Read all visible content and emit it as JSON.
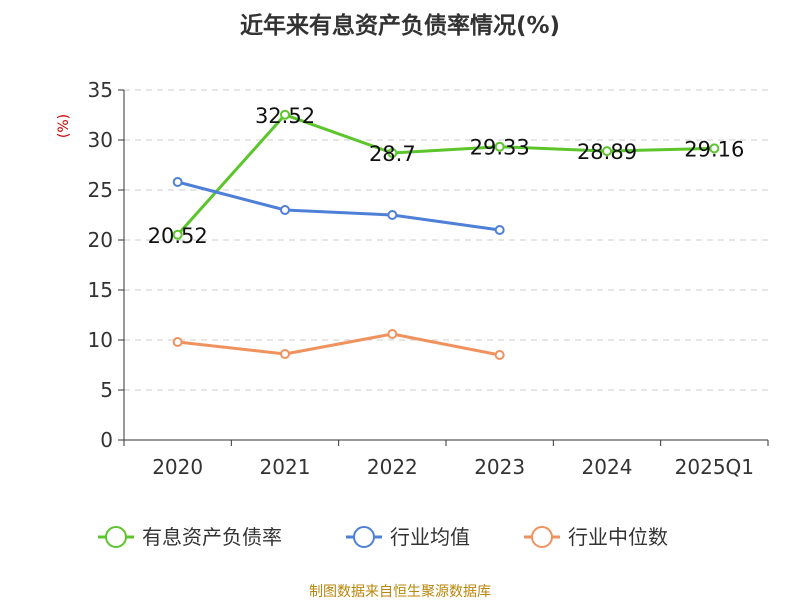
{
  "chart_data": {
    "type": "line",
    "title": "近年来有息资产负债率情况(%)",
    "ylabel": "(%)",
    "xlabel": "",
    "categories": [
      "2020",
      "2021",
      "2022",
      "2023",
      "2024",
      "2025Q1"
    ],
    "ylim": [
      0,
      35
    ],
    "yticks": [
      0,
      5,
      10,
      15,
      20,
      25,
      30,
      35
    ],
    "grid": true,
    "legend_position": "bottom",
    "series": [
      {
        "name": "有息资产负债率",
        "color": "#5cc52c",
        "values": [
          20.52,
          32.52,
          28.7,
          29.33,
          28.89,
          29.16
        ],
        "labels": [
          "20.52",
          "32.52",
          "28.7",
          "29.33",
          "28.89",
          "29.16"
        ]
      },
      {
        "name": "行业均值",
        "color": "#4e80d8",
        "values": [
          25.8,
          23.0,
          22.5,
          21.0,
          null,
          null
        ]
      },
      {
        "name": "行业中位数",
        "color": "#f0925e",
        "values": [
          9.8,
          8.6,
          10.6,
          8.5,
          null,
          null
        ]
      }
    ]
  },
  "footer": {
    "source": "制图数据来自恒生聚源数据库"
  },
  "colors": {
    "title": "#333333",
    "axis": "#333333",
    "ylabel": "#cc0000",
    "grid": "#cccccc",
    "footer": "#b8860b"
  }
}
